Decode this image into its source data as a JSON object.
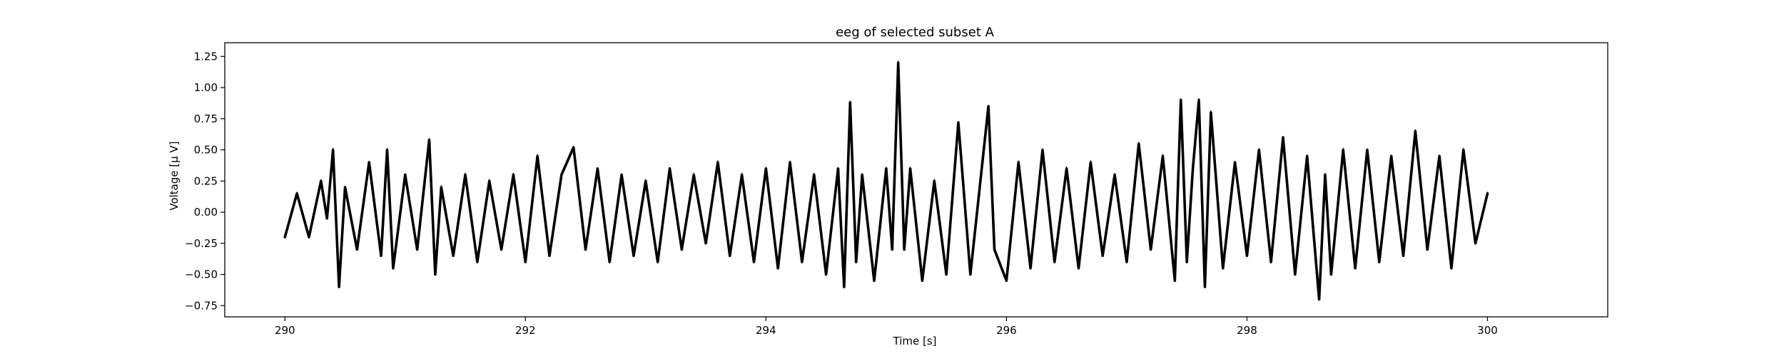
{
  "chart_data": {
    "type": "line",
    "title": "eeg of selected subset A",
    "xlabel": "Time [s]",
    "ylabel": "Voltage [μ V]",
    "xlim": [
      289.5,
      301.0
    ],
    "ylim": [
      -0.84,
      1.36
    ],
    "xticks": [
      290,
      292,
      294,
      296,
      298,
      300
    ],
    "xtick_labels": [
      "290",
      "292",
      "294",
      "296",
      "298",
      "300"
    ],
    "yticks": [
      -0.75,
      -0.5,
      -0.25,
      0.0,
      0.25,
      0.5,
      0.75,
      1.0,
      1.25
    ],
    "ytick_labels": [
      "−0.75",
      "−0.50",
      "−0.25",
      "0.00",
      "0.25",
      "0.50",
      "0.75",
      "1.00",
      "1.25"
    ],
    "grid": false,
    "legend": "none",
    "series": [
      {
        "style": "thick black line with dotted black markers",
        "color": "#000000",
        "x": [
          290.0,
          290.1,
          290.2,
          290.3,
          290.35,
          290.4,
          290.45,
          290.5,
          290.6,
          290.7,
          290.8,
          290.85,
          290.9,
          291.0,
          291.1,
          291.2,
          291.25,
          291.3,
          291.4,
          291.5,
          291.6,
          291.7,
          291.8,
          291.9,
          292.0,
          292.1,
          292.2,
          292.3,
          292.4,
          292.5,
          292.6,
          292.7,
          292.8,
          292.9,
          293.0,
          293.1,
          293.2,
          293.3,
          293.4,
          293.5,
          293.6,
          293.7,
          293.8,
          293.9,
          294.0,
          294.1,
          294.2,
          294.3,
          294.4,
          294.5,
          294.6,
          294.65,
          294.7,
          294.75,
          294.8,
          294.9,
          295.0,
          295.05,
          295.1,
          295.15,
          295.2,
          295.3,
          295.4,
          295.5,
          295.6,
          295.7,
          295.8,
          295.85,
          295.9,
          296.0,
          296.1,
          296.2,
          296.3,
          296.4,
          296.5,
          296.6,
          296.7,
          296.8,
          296.9,
          297.0,
          297.1,
          297.2,
          297.3,
          297.4,
          297.45,
          297.5,
          297.55,
          297.6,
          297.65,
          297.7,
          297.8,
          297.9,
          298.0,
          298.1,
          298.2,
          298.3,
          298.4,
          298.5,
          298.6,
          298.65,
          298.7,
          298.8,
          298.9,
          299.0,
          299.1,
          299.2,
          299.3,
          299.4,
          299.5,
          299.6,
          299.7,
          299.8,
          299.9,
          300.0
        ],
        "y": [
          -0.2,
          0.15,
          -0.2,
          0.25,
          -0.05,
          0.5,
          -0.6,
          0.2,
          -0.3,
          0.4,
          -0.35,
          0.5,
          -0.45,
          0.3,
          -0.3,
          0.58,
          -0.5,
          0.2,
          -0.35,
          0.3,
          -0.4,
          0.25,
          -0.3,
          0.3,
          -0.4,
          0.45,
          -0.35,
          0.3,
          0.52,
          -0.3,
          0.35,
          -0.4,
          0.3,
          -0.35,
          0.25,
          -0.4,
          0.35,
          -0.3,
          0.3,
          -0.25,
          0.4,
          -0.35,
          0.3,
          -0.4,
          0.35,
          -0.45,
          0.4,
          -0.4,
          0.3,
          -0.5,
          0.35,
          -0.6,
          0.88,
          -0.4,
          0.3,
          -0.55,
          0.35,
          -0.3,
          1.2,
          -0.3,
          0.35,
          -0.55,
          0.25,
          -0.5,
          0.72,
          -0.5,
          0.4,
          0.85,
          -0.3,
          -0.55,
          0.4,
          -0.45,
          0.5,
          -0.4,
          0.35,
          -0.45,
          0.4,
          -0.35,
          0.3,
          -0.4,
          0.55,
          -0.3,
          0.45,
          -0.55,
          0.9,
          -0.4,
          0.35,
          0.9,
          -0.6,
          0.8,
          -0.45,
          0.4,
          -0.35,
          0.5,
          -0.4,
          0.6,
          -0.5,
          0.45,
          -0.7,
          0.3,
          -0.5,
          0.5,
          -0.45,
          0.5,
          -0.4,
          0.45,
          -0.35,
          0.65,
          -0.3,
          0.45,
          -0.45,
          0.5,
          -0.25,
          0.15
        ]
      }
    ]
  }
}
